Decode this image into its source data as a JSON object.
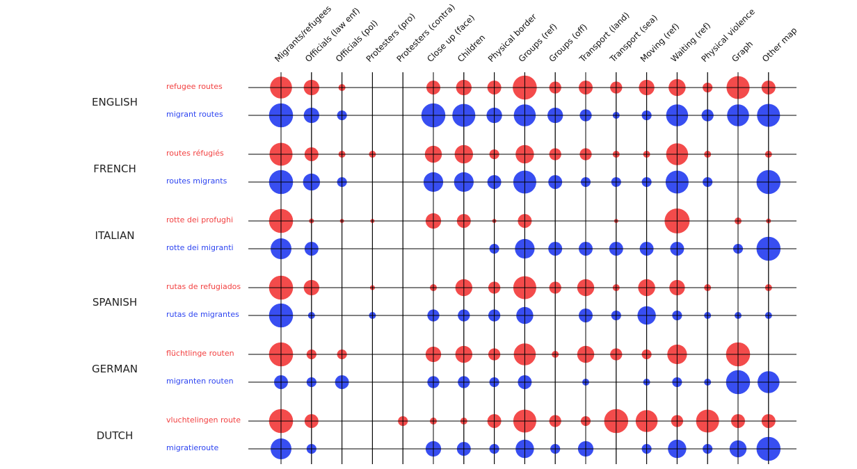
{
  "chart_data": {
    "type": "scatter",
    "colors": {
      "refugee": "#f24141",
      "migrant": "#2d44f0"
    },
    "columns": [
      "Migrants/refugees",
      "Officials (law enf)",
      "Officials (pol)",
      "Protesters (pro)",
      "Protesters (contra)",
      "Close up (face)",
      "Children",
      "Physical border",
      "Groups (ref)",
      "Groups (off)",
      "Transport (land)",
      "Transport (sea)",
      "Moving (ref)",
      "Waiting (ref)",
      "Physical violence",
      "Graph",
      "Other map"
    ],
    "languages": [
      {
        "name": "ENGLISH",
        "rows": [
          {
            "label": "refugee routes",
            "kind": "refugee",
            "values": [
              10,
              5,
              1,
              0,
              0,
              4,
              5,
              4,
              12,
              3,
              4,
              3,
              5,
              6,
              2,
              11,
              4
            ]
          },
          {
            "label": "migrant routes",
            "kind": "migrant",
            "values": [
              12,
              5,
              2,
              0,
              0,
              12,
              11,
              5,
              10,
              5,
              3,
              1,
              2,
              10,
              3,
              10,
              11
            ]
          }
        ]
      },
      {
        "name": "FRENCH",
        "rows": [
          {
            "label": "routes réfugiés",
            "kind": "refugee",
            "values": [
              11,
              4,
              1,
              1,
              0,
              6,
              7,
              2,
              7,
              3,
              3,
              1,
              1,
              10,
              1,
              0,
              1
            ]
          },
          {
            "label": "routes migrants",
            "kind": "migrant",
            "values": [
              12,
              6,
              2,
              0,
              0,
              8,
              8,
              4,
              11,
              4,
              2,
              2,
              2,
              11,
              2,
              0,
              12
            ]
          }
        ]
      },
      {
        "name": "ITALIAN",
        "rows": [
          {
            "label": "rotte dei profughi",
            "kind": "refugee",
            "values": [
              12,
              0.5,
              0.2,
              0.2,
              0,
              5,
              4,
              0.2,
              4,
              0,
              0,
              0.2,
              0,
              13,
              0,
              1,
              0.5
            ]
          },
          {
            "label": "rotte dei migranti",
            "kind": "migrant",
            "values": [
              9,
              4,
              0,
              0,
              0,
              0,
              0,
              2,
              8,
              4,
              4,
              4,
              4,
              4,
              0,
              2,
              12
            ]
          }
        ]
      },
      {
        "name": "SPANISH",
        "rows": [
          {
            "label": "rutas de refugiados",
            "kind": "refugee",
            "values": [
              12,
              5,
              0,
              0.5,
              0,
              1,
              6,
              3,
              11,
              3,
              6,
              1,
              6,
              5,
              1,
              0,
              1
            ]
          },
          {
            "label": "rutas de migrantes",
            "kind": "migrant",
            "values": [
              12,
              1,
              0,
              1,
              0,
              3,
              3,
              3,
              6,
              0,
              4,
              2,
              7,
              2,
              1,
              1,
              1
            ]
          }
        ]
      },
      {
        "name": "GERMAN",
        "rows": [
          {
            "label": "flüchtlinge routen",
            "kind": "refugee",
            "values": [
              12,
              2,
              2,
              0,
              0,
              5,
              6,
              3,
              10,
              1,
              6,
              3,
              2,
              8,
              0,
              12,
              0
            ]
          },
          {
            "label": "migranten routen",
            "kind": "migrant",
            "values": [
              4,
              2,
              4,
              0,
              0,
              3,
              3,
              2,
              4,
              0,
              1,
              0,
              1,
              2,
              1,
              12,
              10
            ]
          }
        ]
      },
      {
        "name": "DUTCH",
        "rows": [
          {
            "label": "vluchtelingen route",
            "kind": "refugee",
            "values": [
              12,
              4,
              0,
              0,
              2,
              1,
              1,
              4,
              11,
              3,
              2,
              12,
              10,
              3,
              11,
              4,
              4
            ]
          },
          {
            "label": "migratieroute",
            "kind": "migrant",
            "values": [
              9,
              2,
              0,
              0,
              0,
              5,
              4,
              2,
              7,
              2,
              5,
              0,
              2,
              7,
              2,
              6,
              12
            ]
          }
        ]
      }
    ]
  }
}
